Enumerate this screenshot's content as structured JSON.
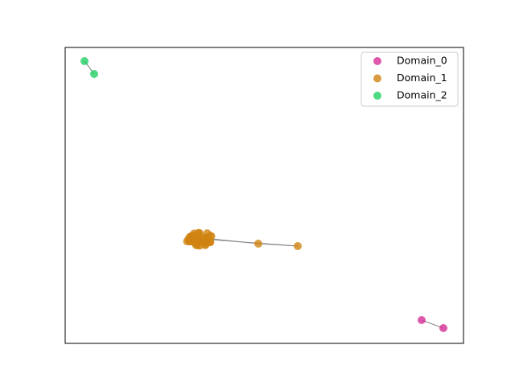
{
  "legend": [
    {
      "label": "Domain_0",
      "color": "#d62f96"
    },
    {
      "label": "Domain_1",
      "color": "#d08312"
    },
    {
      "label": "Domain_2",
      "color": "#22cf63"
    }
  ]
}
